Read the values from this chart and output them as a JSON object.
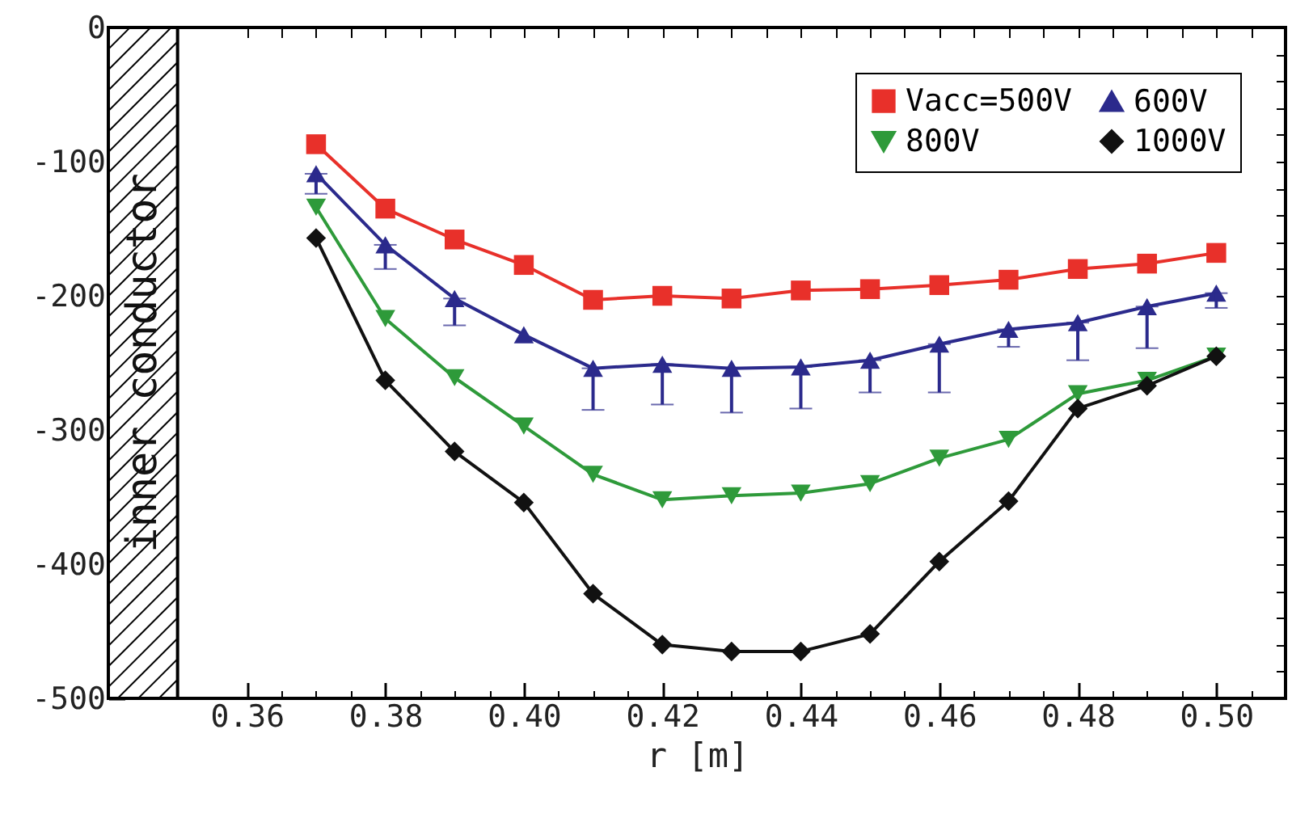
{
  "chart_data": {
    "type": "line",
    "xlabel": "r [m]",
    "x": [
      0.37,
      0.38,
      0.39,
      0.4,
      0.41,
      0.42,
      0.43,
      0.44,
      0.45,
      0.46,
      0.47,
      0.48,
      0.49,
      0.5
    ],
    "series": [
      {
        "name": "Vacc=500V",
        "color": "#e8302a",
        "marker": "square",
        "values": [
          -87,
          -135,
          -158,
          -177,
          -203,
          -200,
          -202,
          -196,
          -195,
          -192,
          -188,
          -180,
          -176,
          -168
        ]
      },
      {
        "name": "600V",
        "color": "#2b2a8c",
        "marker": "triangle",
        "values": [
          -109,
          -162,
          -202,
          -229,
          -254,
          -251,
          -254,
          -253,
          -248,
          -236,
          -225,
          -220,
          -208,
          -198
        ],
        "errors": [
          [
            -124,
            -109
          ],
          [
            -180,
            -162
          ],
          [
            -222,
            -202
          ],
          null,
          [
            -285,
            -254
          ],
          [
            -281,
            -251
          ],
          [
            -287,
            -254
          ],
          [
            -284,
            -253
          ],
          [
            -272,
            -248
          ],
          [
            -272,
            -236
          ],
          [
            -238,
            -225
          ],
          [
            -248,
            -220
          ],
          [
            -239,
            -208
          ],
          [
            -209,
            -198
          ]
        ]
      },
      {
        "name": "800V",
        "color": "#2e9a3a",
        "marker": "triangle-down",
        "values": [
          -134,
          -217,
          -261,
          -297,
          -333,
          -352,
          -349,
          -347,
          -340,
          -321,
          -307,
          -273,
          -263,
          -245
        ]
      },
      {
        "name": "1000V",
        "color": "#111111",
        "marker": "diamond",
        "values": [
          -157,
          -263,
          -316,
          -354,
          -422,
          -460,
          -465,
          -465,
          -452,
          -398,
          -353,
          -284,
          -267,
          -245
        ]
      }
    ],
    "xlim": [
      0.34,
      0.51
    ],
    "xticks": [
      {
        "value": 0.345,
        "label": null
      },
      0.36,
      {
        "value": 0.365,
        "label": null
      },
      {
        "value": 0.37,
        "label": null
      },
      {
        "value": 0.375,
        "label": null
      },
      0.38,
      {
        "value": 0.385,
        "label": null
      },
      {
        "value": 0.39,
        "label": null
      },
      {
        "value": 0.395,
        "label": null
      },
      {
        "value": 0.4,
        "label": "0.40"
      },
      {
        "value": 0.405,
        "label": null
      },
      {
        "value": 0.41,
        "label": null
      },
      {
        "value": 0.415,
        "label": null
      },
      0.42,
      {
        "value": 0.425,
        "label": null
      },
      {
        "value": 0.43,
        "label": null
      },
      {
        "value": 0.435,
        "label": null
      },
      0.44,
      {
        "value": 0.445,
        "label": null
      },
      {
        "value": 0.45,
        "label": null
      },
      {
        "value": 0.455,
        "label": null
      },
      0.46,
      {
        "value": 0.465,
        "label": null
      },
      {
        "value": 0.47,
        "label": null
      },
      {
        "value": 0.475,
        "label": null
      },
      0.48,
      {
        "value": 0.485,
        "label": null
      },
      {
        "value": 0.49,
        "label": null
      },
      {
        "value": 0.495,
        "label": null
      },
      {
        "value": 0.5,
        "label": "0.50"
      },
      {
        "value": 0.505,
        "label": null
      }
    ],
    "ylim": [
      -500,
      0
    ],
    "yticks": [
      -500,
      {
        "value": -480,
        "label": null
      },
      {
        "value": -460,
        "label": null
      },
      {
        "value": -440,
        "label": null
      },
      {
        "value": -420,
        "label": null
      },
      -400,
      {
        "value": -380,
        "label": null
      },
      {
        "value": -360,
        "label": null
      },
      {
        "value": -340,
        "label": null
      },
      {
        "value": -320,
        "label": null
      },
      -300,
      {
        "value": -280,
        "label": null
      },
      {
        "value": -260,
        "label": null
      },
      {
        "value": -240,
        "label": null
      },
      {
        "value": -220,
        "label": null
      },
      -200,
      {
        "value": -180,
        "label": null
      },
      {
        "value": -160,
        "label": null
      },
      {
        "value": -140,
        "label": null
      },
      {
        "value": -120,
        "label": null
      },
      -100,
      {
        "value": -80,
        "label": null
      },
      {
        "value": -60,
        "label": null
      },
      {
        "value": -40,
        "label": null
      },
      {
        "value": -20,
        "label": null
      },
      0
    ],
    "bands": [
      {
        "axis": "x",
        "from": 0.34,
        "to": 0.35,
        "label": "inner conductor"
      }
    ],
    "legend": "top right",
    "grid": false
  }
}
